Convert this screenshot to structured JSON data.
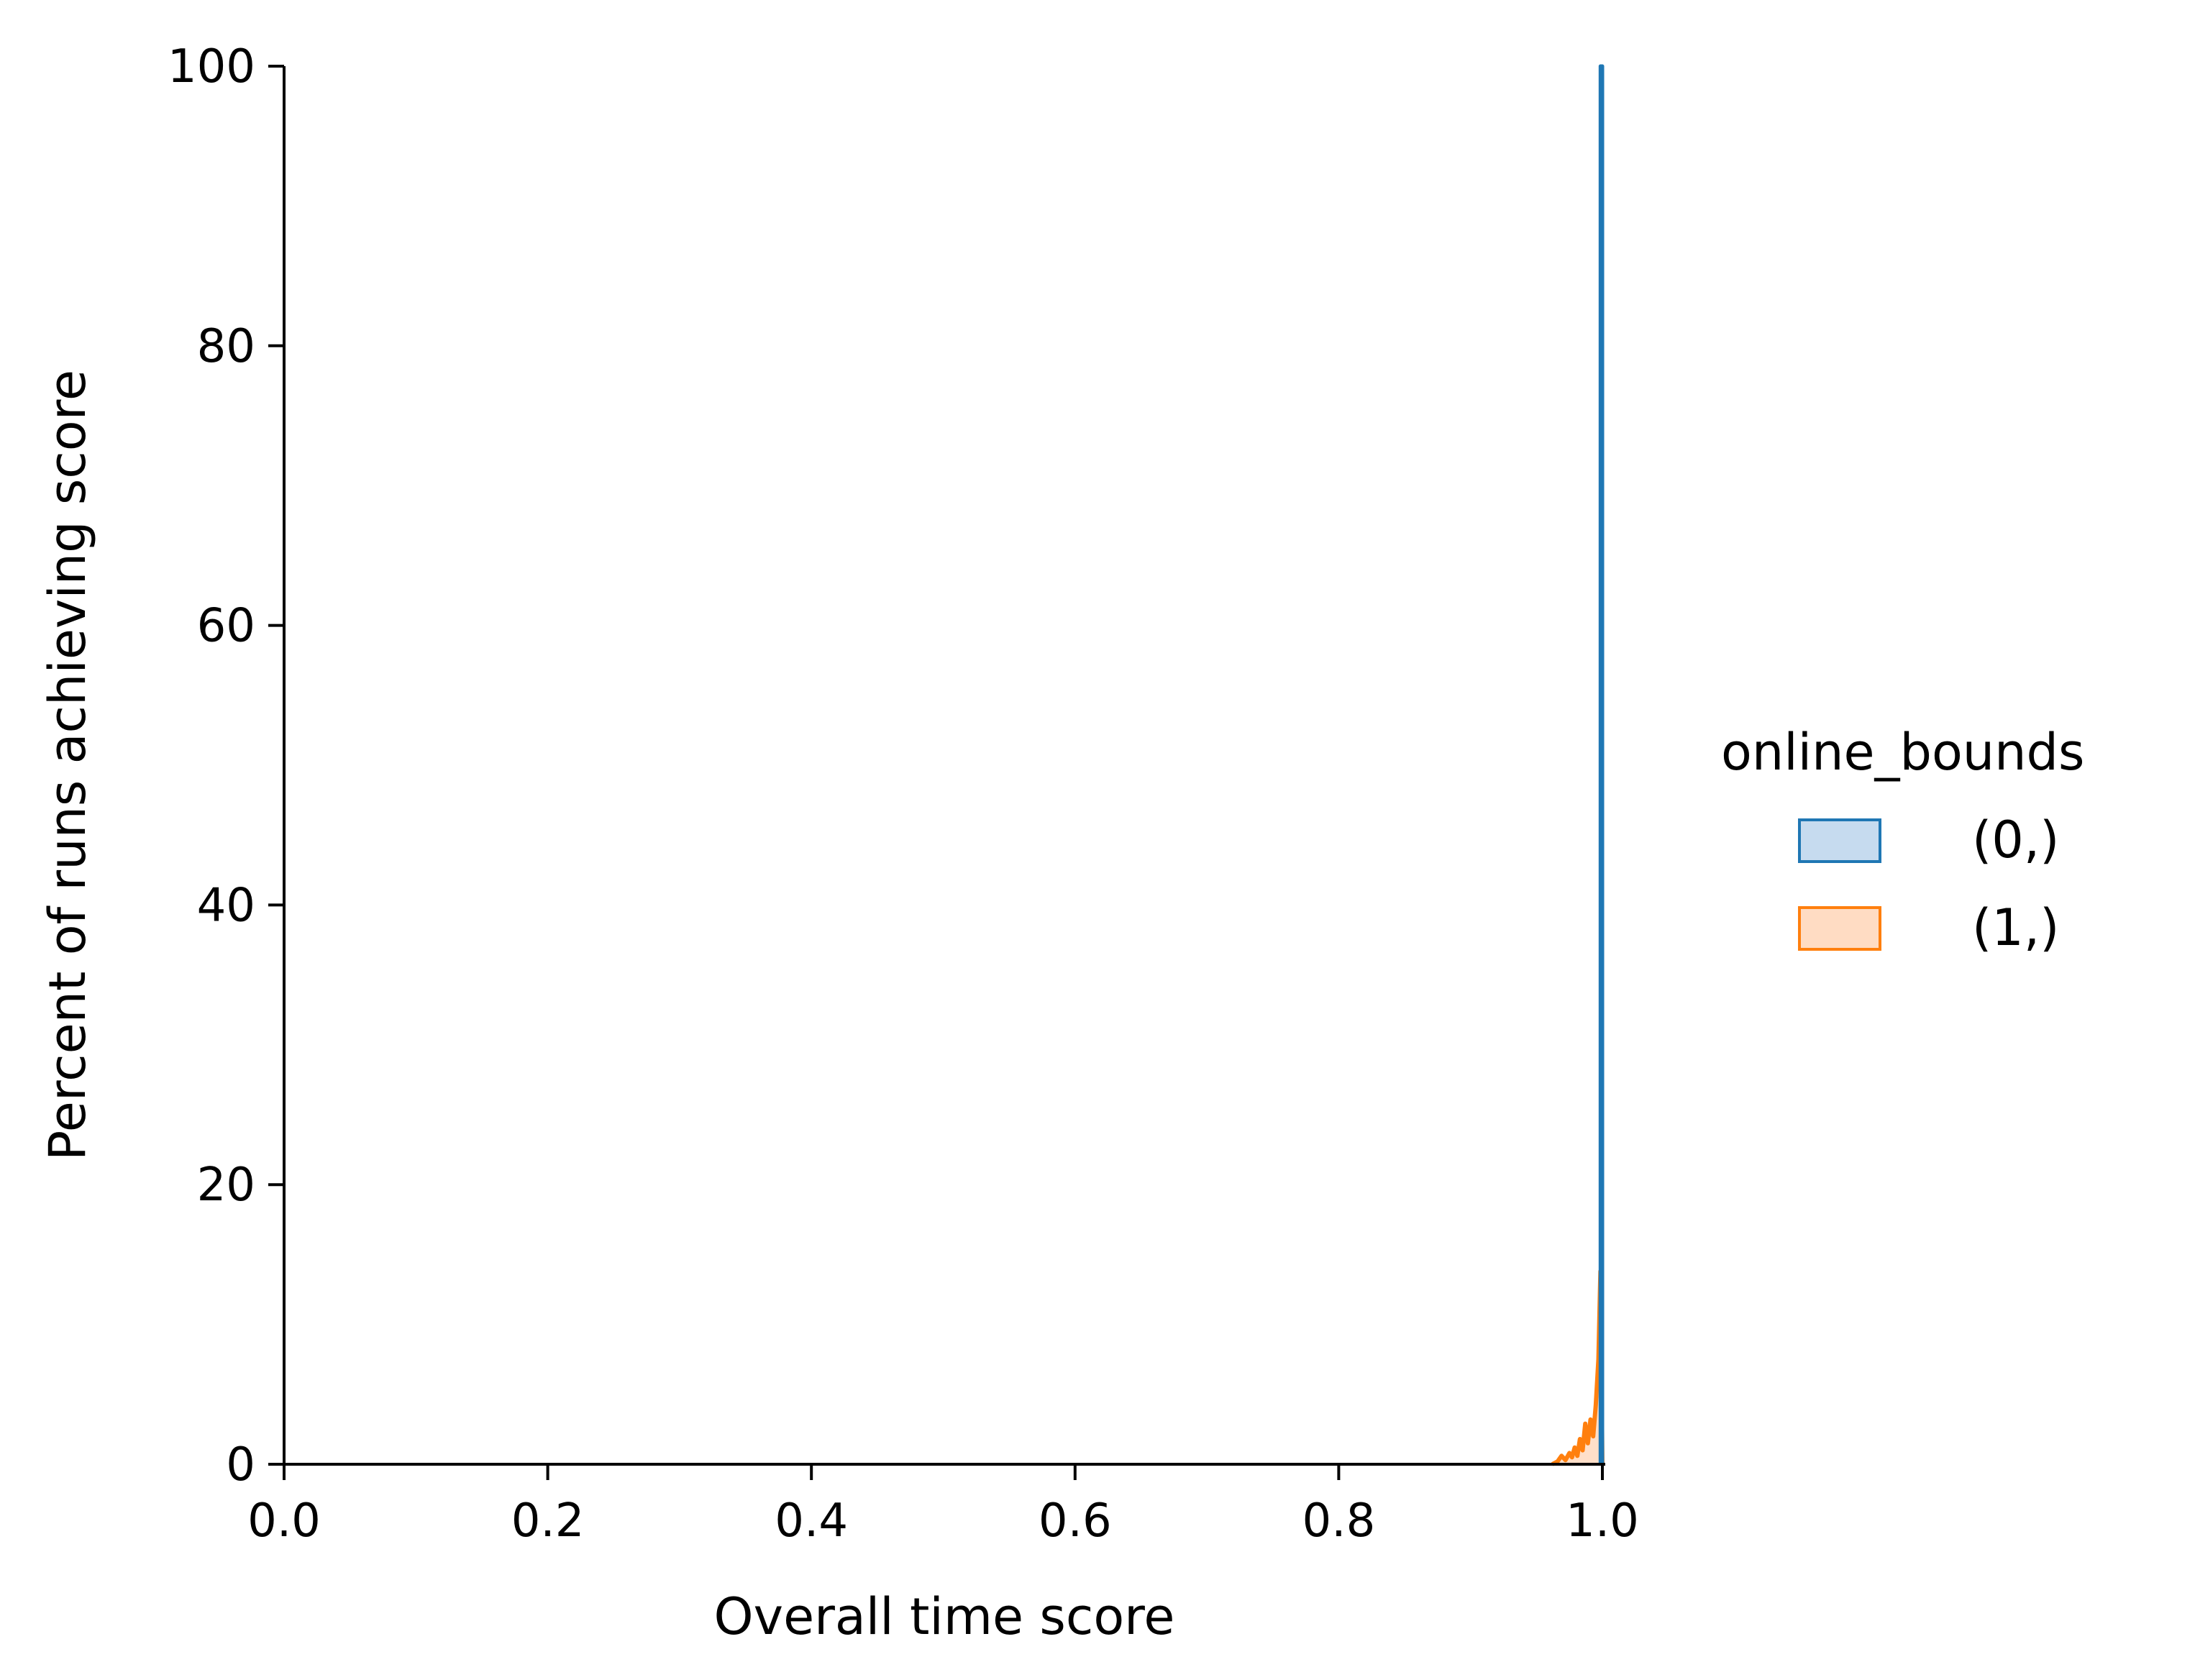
{
  "chart_data": {
    "type": "area",
    "title": "",
    "xlabel": "Overall time score",
    "ylabel": "Percent of runs achieving score",
    "xlim": [
      0.0,
      1.0
    ],
    "ylim": [
      0,
      100
    ],
    "xticks": [
      0.0,
      0.2,
      0.4,
      0.6,
      0.8,
      1.0
    ],
    "xtick_labels": [
      "0.0",
      "0.2",
      "0.4",
      "0.6",
      "0.8",
      "1.0"
    ],
    "yticks": [
      0,
      20,
      40,
      60,
      80,
      100
    ],
    "ytick_labels": [
      "0",
      "20",
      "40",
      "60",
      "80",
      "100"
    ],
    "grid": false,
    "legend": {
      "title": "online_bounds",
      "placement": "right, outside plot"
    },
    "series": [
      {
        "name": "(0,)",
        "color": "#1f77b4",
        "fill_color": "#c6dbef",
        "points": [
          [
            0.9985,
            0
          ],
          [
            0.9985,
            100
          ],
          [
            1.0,
            100
          ],
          [
            1.0,
            0
          ]
        ]
      },
      {
        "name": "(1,)",
        "color": "#ff7f0e",
        "fill_color": "#ffdcc3",
        "points": [
          [
            0.962,
            0
          ],
          [
            0.966,
            0.2
          ],
          [
            0.969,
            0.6
          ],
          [
            0.972,
            0.3
          ],
          [
            0.975,
            0.8
          ],
          [
            0.977,
            0.5
          ],
          [
            0.979,
            1.2
          ],
          [
            0.981,
            0.6
          ],
          [
            0.983,
            1.8
          ],
          [
            0.985,
            1.0
          ],
          [
            0.987,
            2.9
          ],
          [
            0.989,
            1.5
          ],
          [
            0.991,
            3.2
          ],
          [
            0.993,
            2.0
          ],
          [
            0.995,
            4.2
          ],
          [
            0.997,
            7.5
          ],
          [
            0.9985,
            13.8
          ],
          [
            1.0,
            0
          ]
        ]
      }
    ]
  }
}
